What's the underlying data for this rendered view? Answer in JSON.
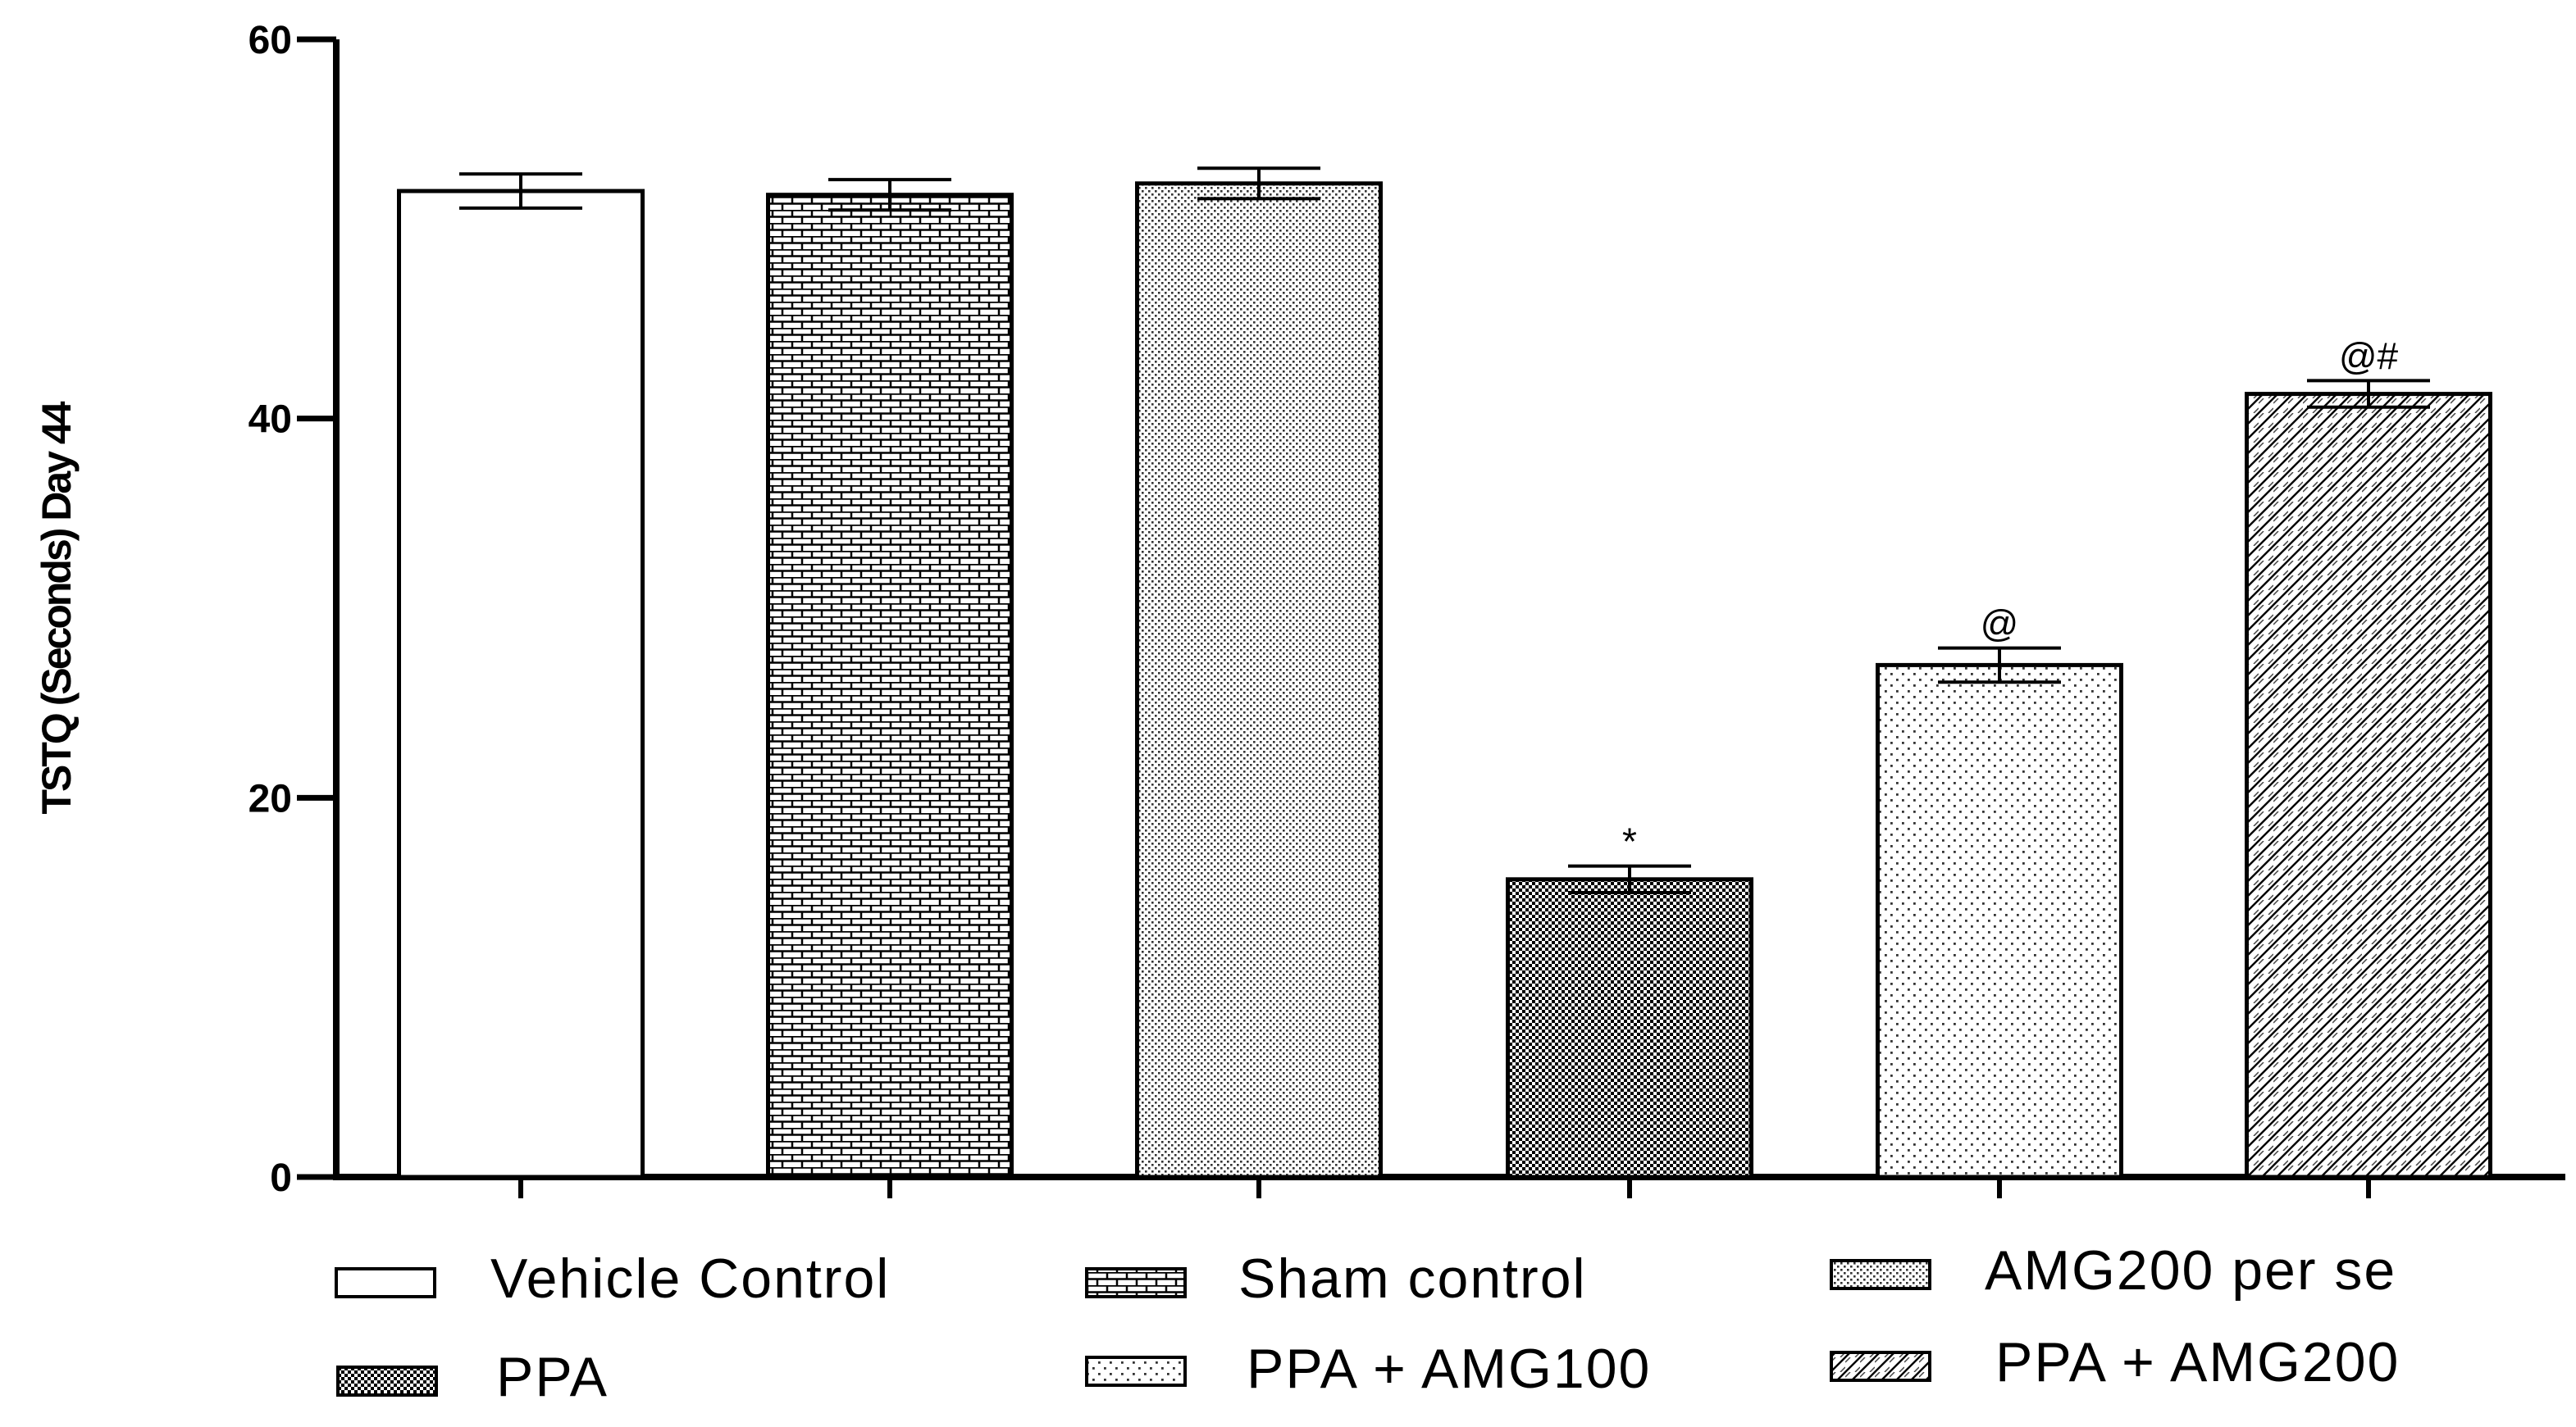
{
  "chart_data": {
    "type": "bar",
    "title": "",
    "xlabel": "",
    "ylabel": "TSTQ (Seconds) Day 44",
    "ylim": [
      0,
      60
    ],
    "yticks": [
      "0",
      "20",
      "40",
      "60"
    ],
    "grid": false,
    "legend_position": "bottom",
    "categories": [
      "Vehicle Control",
      "Sham control",
      "AMG200 per se",
      "PPA",
      "PPA + AMG100",
      "PPA + AMG200"
    ],
    "values": [
      52,
      51.8,
      52.4,
      15.7,
      27,
      41.3
    ],
    "errors": [
      0.9,
      0.8,
      0.8,
      0.7,
      0.9,
      0.7
    ],
    "annotations": [
      "",
      "",
      "",
      "*",
      "@",
      "@#"
    ],
    "patterns": [
      "none",
      "brick",
      "dots-fine",
      "checker",
      "dots-sparse",
      "diagonal"
    ]
  }
}
